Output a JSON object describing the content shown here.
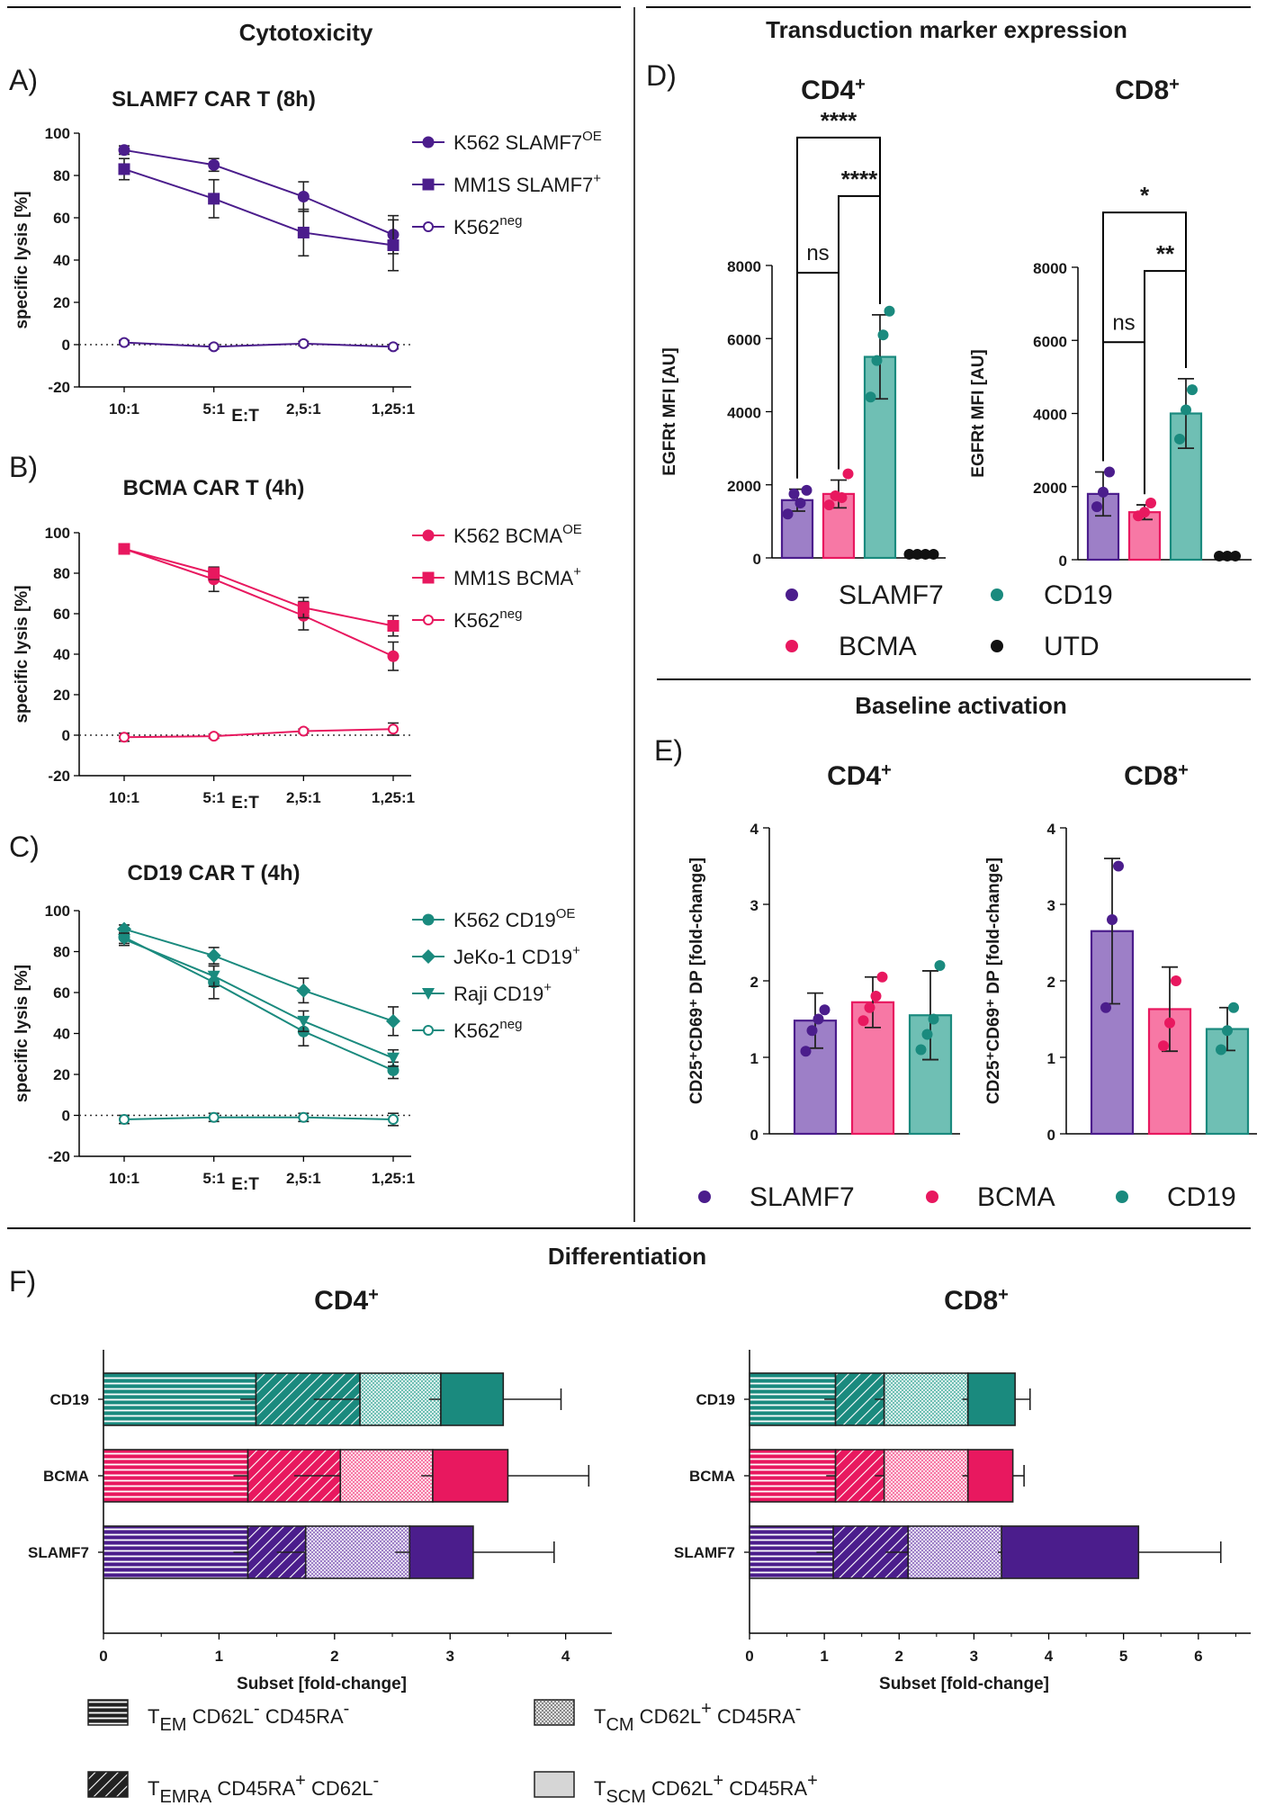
{
  "sections": {
    "cytotoxicity": "Cytotoxicity",
    "transduction": "Transduction marker expression",
    "baseline": "Baseline activation",
    "differentiation": "Differentiation"
  },
  "colors": {
    "SLAMF7": "#4b1d8c",
    "SLAMF7_light": "#9d7fc7",
    "BCMA": "#e8185f",
    "BCMA_light": "#f778a5",
    "CD19": "#1a8a7e",
    "CD19_light": "#6fbfb4",
    "UTD": "#111111"
  },
  "panels": {
    "A": "A)",
    "B": "B)",
    "C": "C)",
    "D": "D)",
    "E": "E)",
    "F": "F)"
  },
  "chart_data": [
    {
      "id": "A",
      "type": "line",
      "title": "SLAMF7 CAR T (8h)",
      "xlabel": "E:T",
      "ylabel": "specific lysis [%]",
      "categories": [
        "10:1",
        "5:1",
        "2,5:1",
        "1,25:1"
      ],
      "ylim": [
        -20,
        100
      ],
      "yticks": [
        -20,
        0,
        20,
        40,
        60,
        80,
        100
      ],
      "color": "#4b1d8c",
      "series": [
        {
          "name": "K562 SLAMF7",
          "sup": "OE",
          "marker": "circle",
          "values": [
            92,
            85,
            70,
            52
          ],
          "err": [
            2,
            3,
            7,
            9
          ]
        },
        {
          "name": "MM1S SLAMF7",
          "sup": "+",
          "marker": "square",
          "values": [
            83,
            69,
            53,
            47
          ],
          "err": [
            5,
            9,
            11,
            12
          ]
        },
        {
          "name": "K562",
          "sup": "neg",
          "marker": "open",
          "values": [
            1,
            -1,
            0.5,
            -1
          ],
          "err": [
            1,
            1,
            1,
            1
          ]
        }
      ]
    },
    {
      "id": "B",
      "type": "line",
      "title": "BCMA CAR T (4h)",
      "xlabel": "E:T",
      "ylabel": "specific lysis [%]",
      "categories": [
        "10:1",
        "5:1",
        "2,5:1",
        "1,25:1"
      ],
      "ylim": [
        -20,
        100
      ],
      "yticks": [
        -20,
        0,
        20,
        40,
        60,
        80,
        100
      ],
      "color": "#e8185f",
      "series": [
        {
          "name": "K562 BCMA",
          "sup": "OE",
          "marker": "circle",
          "values": [
            92,
            77,
            59,
            39
          ],
          "err": [
            2,
            6,
            7,
            7
          ]
        },
        {
          "name": "MM1S BCMA",
          "sup": "+",
          "marker": "square",
          "values": [
            92,
            80,
            63,
            54
          ],
          "err": [
            2,
            3,
            5,
            5
          ]
        },
        {
          "name": "K562",
          "sup": "neg",
          "marker": "open",
          "values": [
            -1,
            -0.5,
            2,
            3
          ],
          "err": [
            2,
            1,
            1,
            3
          ]
        }
      ]
    },
    {
      "id": "C",
      "type": "line",
      "title": "CD19 CAR T (4h)",
      "xlabel": "E:T",
      "ylabel": "specific lysis [%]",
      "categories": [
        "10:1",
        "5:1",
        "2,5:1",
        "1,25:1"
      ],
      "ylim": [
        -20,
        100
      ],
      "yticks": [
        -20,
        0,
        20,
        40,
        60,
        80,
        100
      ],
      "color": "#1a8a7e",
      "series": [
        {
          "name": "K562 CD19",
          "sup": "OE",
          "marker": "circle",
          "values": [
            87,
            65,
            41,
            22
          ],
          "err": [
            3,
            8,
            7,
            4
          ]
        },
        {
          "name": "JeKo-1 CD19",
          "sup": "+",
          "marker": "diamond",
          "values": [
            91,
            78,
            61,
            46
          ],
          "err": [
            2,
            4,
            6,
            7
          ]
        },
        {
          "name": "Raji CD19",
          "sup": "+",
          "marker": "triangle",
          "values": [
            86,
            68,
            46,
            28
          ],
          "err": [
            3,
            5,
            5,
            4
          ]
        },
        {
          "name": "K562",
          "sup": "neg",
          "marker": "open",
          "values": [
            -2,
            -1,
            -1,
            -2
          ],
          "err": [
            2,
            2,
            2,
            3
          ]
        }
      ]
    },
    {
      "id": "D1",
      "type": "bar",
      "title": "CD4",
      "title_sup": "+",
      "ylabel": "EGFRt MFI [AU]",
      "ylim": [
        0,
        8000
      ],
      "yticks": [
        0,
        2000,
        4000,
        6000,
        8000
      ],
      "categories": [
        "SLAMF7",
        "BCMA",
        "CD19",
        "UTD"
      ],
      "values": [
        1580,
        1750,
        5500,
        100
      ],
      "err": [
        300,
        380,
        1150,
        0
      ],
      "points": [
        [
          1200,
          1750,
          1500,
          1850
        ],
        [
          1450,
          1700,
          1650,
          2300
        ],
        [
          4400,
          5400,
          6100,
          6750
        ],
        [
          100,
          100,
          100,
          100
        ]
      ],
      "brackets": [
        {
          "from": 0,
          "to": 2,
          "label": "****",
          "level": 11500
        },
        {
          "from": 1,
          "to": 2,
          "label": "****",
          "level": 9900
        },
        {
          "from": 0,
          "to": 1,
          "label": "ns",
          "level": 7800
        }
      ]
    },
    {
      "id": "D2",
      "type": "bar",
      "title": "CD8",
      "title_sup": "+",
      "ylabel": "EGFRt MFI [AU]",
      "ylim": [
        0,
        8000
      ],
      "yticks": [
        0,
        2000,
        4000,
        6000,
        8000
      ],
      "categories": [
        "SLAMF7",
        "BCMA",
        "CD19",
        "UTD"
      ],
      "values": [
        1800,
        1300,
        4000,
        100
      ],
      "err": [
        600,
        200,
        950,
        0
      ],
      "points": [
        [
          1450,
          1850,
          2400
        ],
        [
          1200,
          1300,
          1550
        ],
        [
          3300,
          4100,
          4650
        ],
        [
          100,
          100,
          100
        ]
      ],
      "brackets": [
        {
          "from": 0,
          "to": 2,
          "label": "*",
          "level": 9500
        },
        {
          "from": 1,
          "to": 2,
          "label": "**",
          "level": 7900
        },
        {
          "from": 0,
          "to": 1,
          "label": "ns",
          "level": 5950
        }
      ]
    },
    {
      "id": "E1",
      "type": "bar",
      "title": "CD4",
      "title_sup": "+",
      "ylabel": "CD25⁺CD69⁺ DP [fold-change]",
      "ylim": [
        0,
        4
      ],
      "yticks": [
        0,
        1,
        2,
        3,
        4
      ],
      "categories": [
        "SLAMF7",
        "BCMA",
        "CD19"
      ],
      "values": [
        1.48,
        1.72,
        1.55
      ],
      "err": [
        0.36,
        0.33,
        0.58
      ],
      "points": [
        [
          1.08,
          1.35,
          1.5,
          1.62
        ],
        [
          1.48,
          1.65,
          1.8,
          2.05
        ],
        [
          1.1,
          1.3,
          1.5,
          2.2
        ]
      ]
    },
    {
      "id": "E2",
      "type": "bar",
      "title": "CD8",
      "title_sup": "+",
      "ylabel": "CD25⁺CD69⁺ DP [fold-change]",
      "ylim": [
        0,
        4
      ],
      "yticks": [
        0,
        1,
        2,
        3,
        4
      ],
      "categories": [
        "SLAMF7",
        "BCMA",
        "CD19"
      ],
      "values": [
        2.65,
        1.63,
        1.37
      ],
      "err": [
        0.95,
        0.55,
        0.28
      ],
      "points": [
        [
          1.65,
          2.8,
          3.5
        ],
        [
          1.15,
          1.45,
          2.0
        ],
        [
          1.1,
          1.35,
          1.65
        ]
      ]
    },
    {
      "id": "F1",
      "type": "stacked-bar-horizontal",
      "title": "CD4",
      "title_sup": "+",
      "xlabel": "Subset [fold-change]",
      "xlim": [
        0,
        4.4
      ],
      "xticks": [
        0,
        1,
        2,
        3,
        4
      ],
      "categories": [
        "CD19",
        "BCMA",
        "SLAMF7"
      ],
      "stacks": [
        {
          "segments": [
            1.32,
            0.9,
            0.7,
            0.54
          ],
          "err": [
            0.27,
            0.8,
            0.2,
            0.5
          ]
        },
        {
          "segments": [
            1.25,
            0.8,
            0.8,
            0.65
          ],
          "err": [
            0.25,
            0.8,
            0.2,
            0.7
          ]
        },
        {
          "segments": [
            1.25,
            0.5,
            0.9,
            0.55
          ],
          "err": [
            0.25,
            0.5,
            0.25,
            0.7
          ]
        }
      ],
      "subset_order": [
        "TEM",
        "TEMRA",
        "TCM",
        "TSCM"
      ]
    },
    {
      "id": "F2",
      "type": "stacked-bar-horizontal",
      "title": "CD8",
      "title_sup": "+",
      "xlabel": "Subset [fold-change]",
      "xlim": [
        0,
        6.7
      ],
      "xticks": [
        0,
        1,
        2,
        3,
        4,
        5,
        6
      ],
      "categories": [
        "CD19",
        "BCMA",
        "SLAMF7"
      ],
      "stacks": [
        {
          "segments": [
            1.15,
            0.65,
            1.12,
            0.63
          ],
          "err": [
            0.3,
            0.25,
            0.15,
            0.2
          ]
        },
        {
          "segments": [
            1.15,
            0.65,
            1.12,
            0.6
          ],
          "err": [
            0.25,
            0.25,
            0.15,
            0.15
          ]
        },
        {
          "segments": [
            1.12,
            1.0,
            1.25,
            1.83
          ],
          "err": [
            0.45,
            0.6,
            0.1,
            1.1
          ]
        }
      ],
      "subset_order": [
        "TEM",
        "TEMRA",
        "TCM",
        "TSCM"
      ]
    }
  ],
  "legend_D": [
    "SLAMF7",
    "CD19",
    "BCMA",
    "UTD"
  ],
  "legend_E": [
    "SLAMF7",
    "BCMA",
    "CD19"
  ],
  "legend_F": [
    {
      "key": "TEM",
      "t": "T",
      "sub": "EM",
      "text1": " CD62L",
      "sup1": "-",
      "text2": " CD45RA",
      "sup2": "-"
    },
    {
      "key": "TCM",
      "t": "T",
      "sub": "CM",
      "text1": " CD62L",
      "sup1": "+",
      "text2": " CD45RA",
      "sup2": "-"
    },
    {
      "key": "TEMRA",
      "t": "T",
      "sub": "EMRA",
      "text1": " CD45RA",
      "sup1": "+",
      "text2": " CD62L",
      "sup2": "-"
    },
    {
      "key": "TSCM",
      "t": "T",
      "sub": "SCM",
      "text1": " CD62L",
      "sup1": "+",
      "text2": " CD45RA",
      "sup2": "+"
    }
  ]
}
